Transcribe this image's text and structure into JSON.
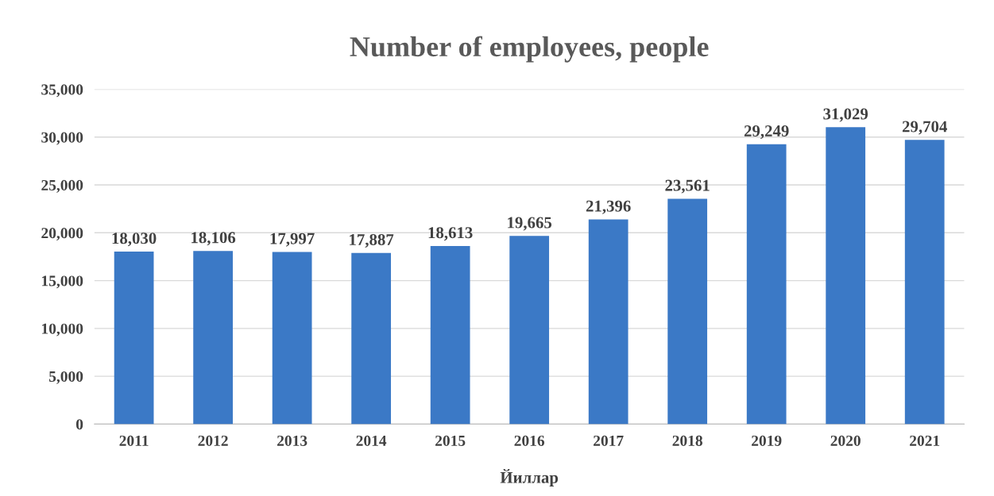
{
  "chart_data": {
    "type": "bar",
    "title": "Number of employees, people",
    "xlabel": "Йиллар",
    "categories": [
      "2011",
      "2012",
      "2013",
      "2014",
      "2015",
      "2016",
      "2017",
      "2018",
      "2019",
      "2020",
      "2021"
    ],
    "values": [
      18030,
      18106,
      17997,
      17887,
      18613,
      19665,
      21396,
      23561,
      29249,
      31029,
      29704
    ],
    "value_labels": [
      "18,030",
      "18,106",
      "17,997",
      "17,887",
      "18,613",
      "19,665",
      "21,396",
      "23,561",
      "29,249",
      "31,029",
      "29,704"
    ],
    "color": "#3b79c6",
    "grid": "y",
    "legend": false,
    "ylim": [
      0,
      35000
    ],
    "yticks": [
      0,
      {
        "value": 5000,
        "label": "5,000"
      },
      {
        "value": 10000,
        "label": "10,000"
      },
      {
        "value": 15000,
        "label": "15,000"
      },
      {
        "value": 20000,
        "label": "20,000"
      },
      {
        "value": 25000,
        "label": "25,000"
      },
      {
        "value": 30000,
        "label": "30,000"
      },
      {
        "value": 35000,
        "label": "35,000"
      }
    ]
  }
}
